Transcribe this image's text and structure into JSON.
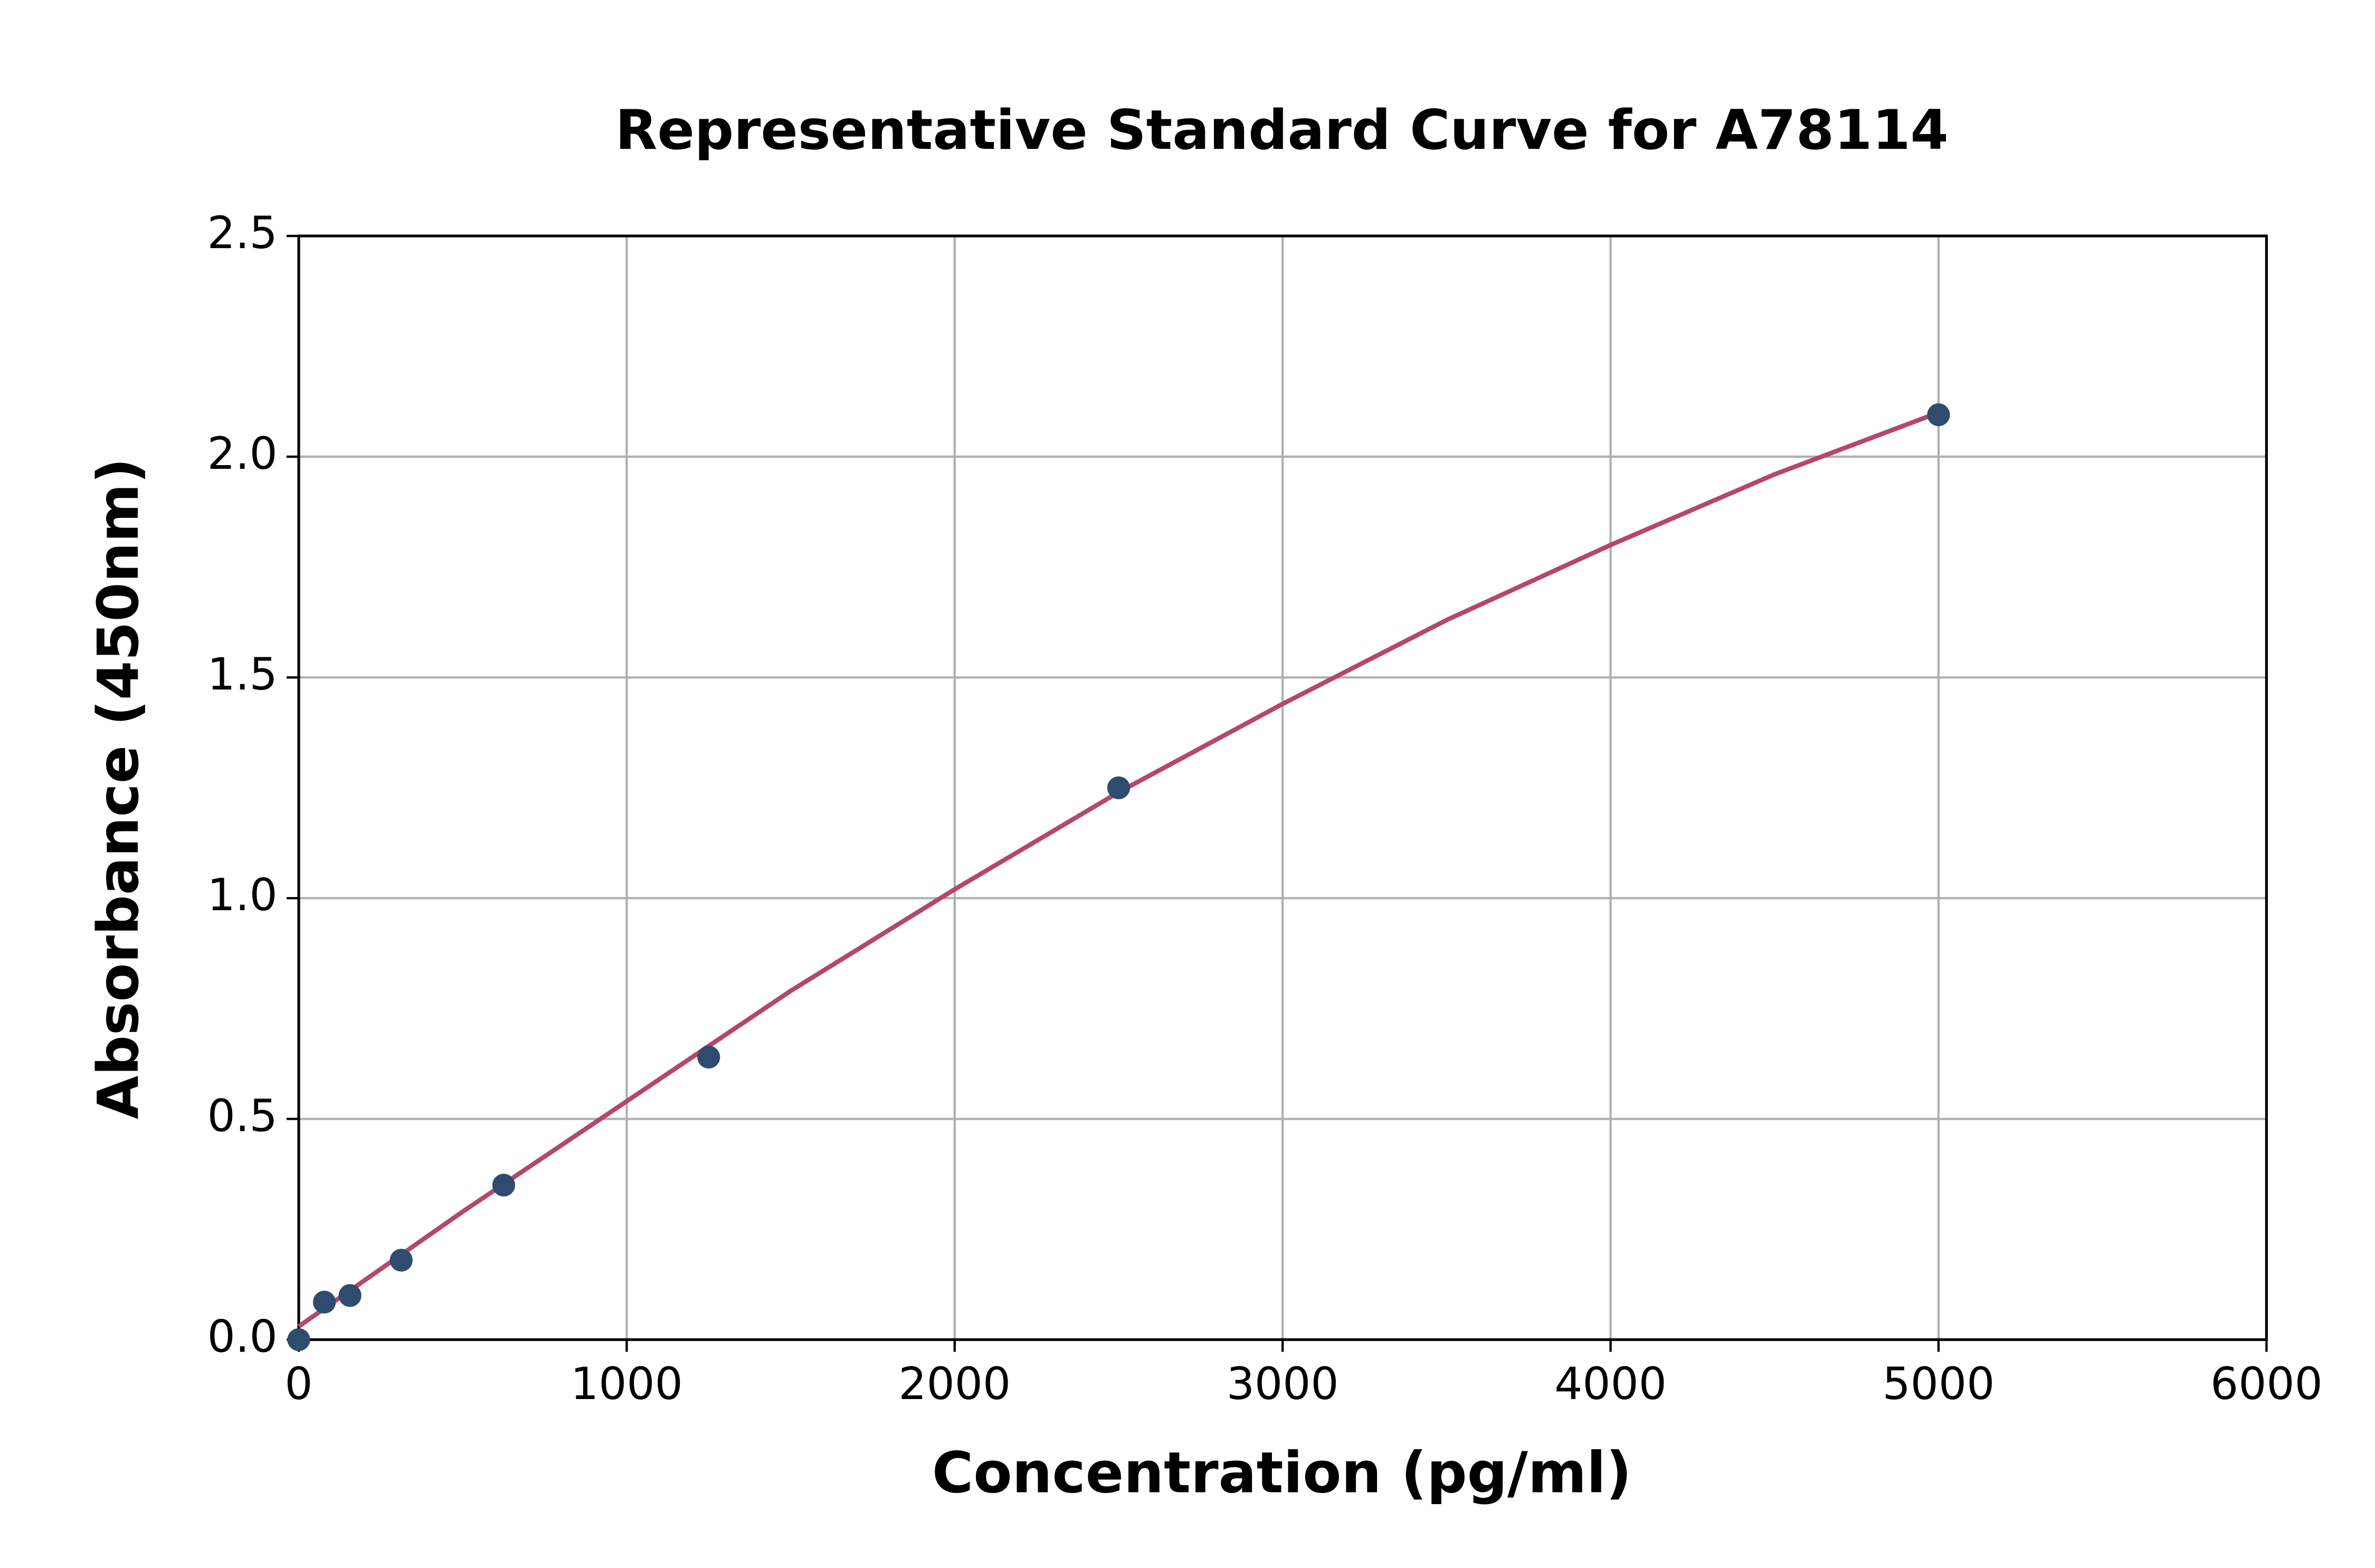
{
  "chart_data": {
    "type": "scatter",
    "title": "Representative Standard Curve for A78114",
    "xlabel": "Concentration (pg/ml)",
    "ylabel": "Absorbance (450nm)",
    "xlim": [
      0,
      6000
    ],
    "xticks": [
      0,
      1000,
      2000,
      3000,
      4000,
      5000,
      6000
    ],
    "ylim": [
      0,
      2.5
    ],
    "yticks": [
      {
        "value": 0,
        "label": "0.0"
      },
      0.5,
      {
        "value": 1,
        "label": "1.0"
      },
      1.5,
      {
        "value": 2,
        "label": "2.0"
      },
      2.5
    ],
    "grid": true,
    "series": [
      {
        "type": "scatter",
        "color": "#2f4b6e",
        "x": [
          0,
          78.125,
          156.25,
          312.5,
          625,
          1250,
          2500,
          5000
        ],
        "values": [
          0.0,
          0.085,
          0.1,
          0.18,
          0.35,
          0.64,
          1.25,
          2.095
        ]
      },
      {
        "type": "line",
        "color": "#b5476e",
        "x": [
          0,
          250,
          500,
          750,
          1000,
          1500,
          2000,
          2500,
          3000,
          3500,
          4000,
          4500,
          5000
        ],
        "values": [
          0.03,
          0.16,
          0.29,
          0.415,
          0.54,
          0.79,
          1.02,
          1.24,
          1.44,
          1.63,
          1.8,
          1.96,
          2.1
        ]
      }
    ]
  }
}
